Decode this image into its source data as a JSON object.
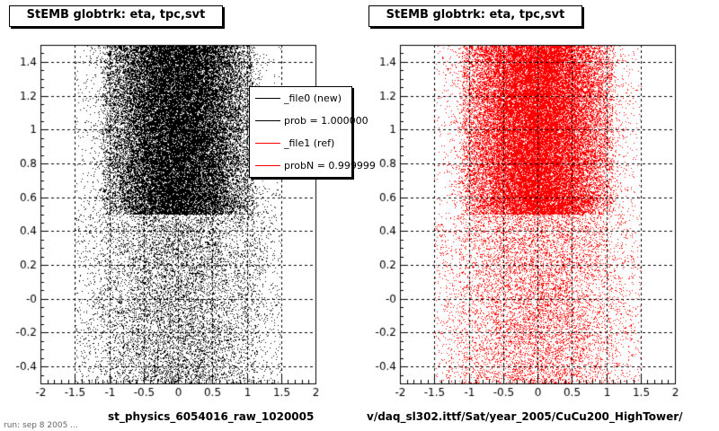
{
  "chart_data": [
    {
      "type": "scatter",
      "title": "StEMB globtrk: eta, tpc,svt",
      "xlabel": "st_physics_6054016_raw_1020005",
      "ylabel": "",
      "xlim": [
        -2,
        2
      ],
      "ylim": [
        -0.5,
        1.5
      ],
      "x_ticks": [
        "-2",
        "-1.5",
        "-1",
        "-0.5",
        "0",
        "0.5",
        "1",
        "1.5",
        "2"
      ],
      "y_ticks": [
        "-0.4",
        "-0.2",
        "-0",
        "0.2",
        "0.4",
        "0.6",
        "0.8",
        "1",
        "1.2",
        "1.4"
      ],
      "grid": true,
      "series": [
        {
          "name": "_file0 (new)",
          "color": "#000000",
          "dense_region": {
            "x": [
              -1.1,
              1.1
            ],
            "y": [
              0.5,
              1.5
            ]
          },
          "sparse_region": {
            "x": [
              -1.5,
              1.5
            ],
            "y": [
              -0.5,
              0.5
            ]
          }
        }
      ],
      "legend": {
        "placement": "top-right",
        "entries": [
          {
            "label": "_file0 (new)",
            "color": "#000000"
          },
          {
            "label": "prob = 1.000000",
            "color": "#000000"
          },
          {
            "label": "_file1 (ref)",
            "color": "#ff0000"
          },
          {
            "label": "probN = 0.999999",
            "color": "#ff0000"
          }
        ]
      }
    },
    {
      "type": "scatter",
      "title": "StEMB globtrk: eta, tpc,svt",
      "xlabel": "v/daq_sl302.ittf/Sat/year_2005/CuCu200_HighTower/",
      "ylabel": "",
      "xlim": [
        -2,
        2
      ],
      "ylim": [
        -0.5,
        1.5
      ],
      "x_ticks": [
        "-2",
        "-1.5",
        "-1",
        "-0.5",
        "0",
        "0.5",
        "1",
        "1.5",
        "2"
      ],
      "y_ticks": [
        "-0.4",
        "-0.2",
        "-0",
        "0.2",
        "0.4",
        "0.6",
        "0.8",
        "1",
        "1.2",
        "1.4"
      ],
      "grid": true,
      "series": [
        {
          "name": "_file1 (ref)",
          "color": "#ff0000",
          "dense_region": {
            "x": [
              -1.1,
              1.1
            ],
            "y": [
              0.5,
              1.5
            ]
          },
          "sparse_region": {
            "x": [
              -1.5,
              1.5
            ],
            "y": [
              -0.5,
              0.5
            ]
          }
        }
      ]
    }
  ],
  "footer": "run: sep  8  2005  ..."
}
